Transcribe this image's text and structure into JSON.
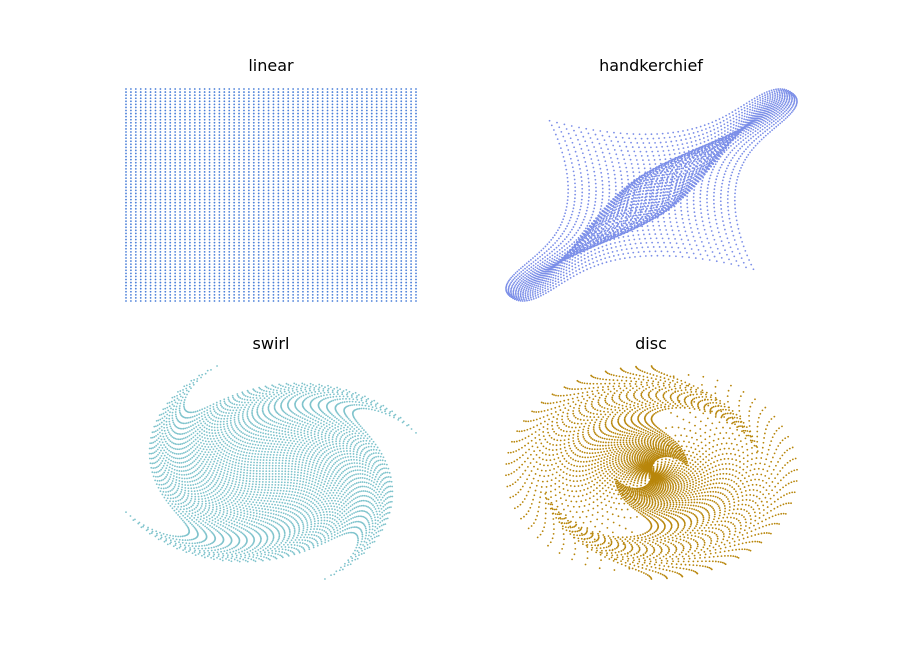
{
  "chart_data": [
    {
      "type": "scatter",
      "title": "linear",
      "transform": "linear",
      "grid_points": [
        60,
        70
      ],
      "x_range": [
        -1,
        1
      ],
      "y_range": [
        -1,
        1
      ],
      "axes_visible": false,
      "grid": false,
      "color": "#4a7fd9"
    },
    {
      "type": "scatter",
      "title": "handkerchief",
      "transform": "handkerchief",
      "grid_points": [
        60,
        70
      ],
      "x_range": [
        -1,
        1
      ],
      "y_range": [
        -1,
        1
      ],
      "axes_visible": false,
      "grid": false,
      "color": "#7c8fe8"
    },
    {
      "type": "scatter",
      "title": "swirl",
      "transform": "swirl",
      "grid_points": [
        60,
        70
      ],
      "x_range": [
        -1,
        1
      ],
      "y_range": [
        -1,
        1
      ],
      "axes_visible": false,
      "grid": false,
      "color": "#7fc3cc"
    },
    {
      "type": "scatter",
      "title": "disc",
      "transform": "disc",
      "grid_points": [
        60,
        70
      ],
      "x_range": [
        -1,
        1
      ],
      "y_range": [
        -1,
        1
      ],
      "axes_visible": false,
      "grid": false,
      "color": "#b8860b"
    }
  ]
}
